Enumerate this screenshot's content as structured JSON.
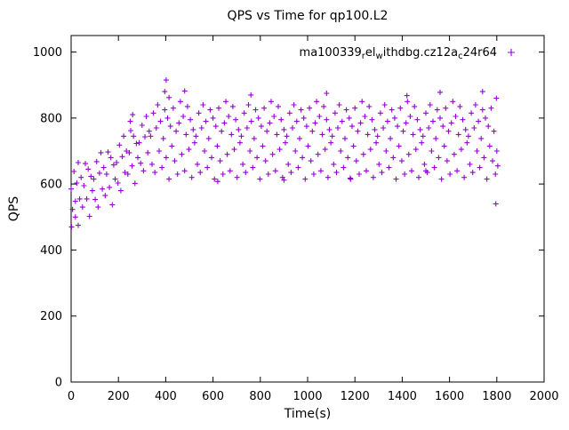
{
  "chart": {
    "marker_color": "#9400d3",
    "legend_segments": [
      {
        "text": "ma100339"
      },
      {
        "text": "r",
        "sub": true
      },
      {
        "text": "el"
      },
      {
        "text": "w",
        "sub": true
      },
      {
        "text": "ithdbg.cz12a",
        "sub": false
      },
      {
        "text": "c",
        "sub": true
      },
      {
        "text": "24r64"
      }
    ]
  },
  "chart_data": {
    "type": "scatter",
    "title": "QPS vs Time for qp100.L2",
    "xlabel": "Time(s)",
    "ylabel": "QPS",
    "xlim": [
      0,
      2000
    ],
    "ylim": [
      0,
      1050
    ],
    "xticks": [
      0,
      200,
      400,
      600,
      800,
      1000,
      1200,
      1400,
      1600,
      1800,
      2000
    ],
    "yticks": [
      0,
      200,
      400,
      600,
      800,
      1000
    ],
    "grid": false,
    "legend_position": "top-right-inside",
    "series": [
      {
        "name": "ma100339_rel_withdbg.cz12a_c24r64",
        "marker": "plus",
        "color": "#9400d3",
        "points": [
          [
            0,
            585
          ],
          [
            6,
            523
          ],
          [
            12,
            638
          ],
          [
            18,
            500
          ],
          [
            24,
            603
          ],
          [
            30,
            665
          ],
          [
            36,
            555
          ],
          [
            42,
            620
          ],
          [
            48,
            530
          ],
          [
            54,
            595
          ],
          [
            60,
            662
          ],
          [
            66,
            555
          ],
          [
            72,
            645
          ],
          [
            78,
            502
          ],
          [
            84,
            623
          ],
          [
            90,
            580
          ],
          [
            96,
            615
          ],
          [
            102,
            553
          ],
          [
            108,
            668
          ],
          [
            114,
            530
          ],
          [
            120,
            633
          ],
          [
            126,
            695
          ],
          [
            132,
            585
          ],
          [
            138,
            650
          ],
          [
            144,
            565
          ],
          [
            150,
            630
          ],
          [
            156,
            697
          ],
          [
            162,
            590
          ],
          [
            168,
            680
          ],
          [
            174,
            537
          ],
          [
            180,
            658
          ],
          [
            186,
            615
          ],
          [
            192,
            665
          ],
          [
            198,
            603
          ],
          [
            204,
            718
          ],
          [
            210,
            580
          ],
          [
            216,
            683
          ],
          [
            222,
            745
          ],
          [
            228,
            635
          ],
          [
            234,
            700
          ],
          [
            240,
            630
          ],
          [
            246,
            695
          ],
          [
            252,
            762
          ],
          [
            258,
            655
          ],
          [
            264,
            745
          ],
          [
            270,
            602
          ],
          [
            276,
            723
          ],
          [
            282,
            680
          ],
          [
            288,
            725
          ],
          [
            294,
            663
          ],
          [
            300,
            778
          ],
          [
            306,
            640
          ],
          [
            312,
            743
          ],
          [
            318,
            805
          ],
          [
            324,
            695
          ],
          [
            330,
            760
          ],
          [
            336,
            745
          ],
          [
            342,
            660
          ],
          [
            348,
            815
          ],
          [
            354,
            635
          ],
          [
            360,
            770
          ],
          [
            366,
            840
          ],
          [
            372,
            700
          ],
          [
            378,
            790
          ],
          [
            384,
            650
          ],
          [
            390,
            738
          ],
          [
            396,
            825
          ],
          [
            402,
            680
          ],
          [
            408,
            800
          ],
          [
            414,
            615
          ],
          [
            420,
            775
          ],
          [
            426,
            715
          ],
          [
            432,
            830
          ],
          [
            438,
            670
          ],
          [
            444,
            760
          ],
          [
            450,
            630
          ],
          [
            456,
            785
          ],
          [
            462,
            850
          ],
          [
            468,
            690
          ],
          [
            474,
            805
          ],
          [
            480,
            640
          ],
          [
            486,
            750
          ],
          [
            492,
            835
          ],
          [
            498,
            705
          ],
          [
            504,
            795
          ],
          [
            510,
            620
          ],
          [
            516,
            765
          ],
          [
            522,
            725
          ],
          [
            528,
            745
          ],
          [
            534,
            660
          ],
          [
            540,
            815
          ],
          [
            546,
            635
          ],
          [
            552,
            770
          ],
          [
            558,
            840
          ],
          [
            564,
            700
          ],
          [
            570,
            790
          ],
          [
            576,
            650
          ],
          [
            582,
            738
          ],
          [
            588,
            825
          ],
          [
            594,
            680
          ],
          [
            600,
            800
          ],
          [
            606,
            615
          ],
          [
            612,
            775
          ],
          [
            618,
            715
          ],
          [
            624,
            830
          ],
          [
            630,
            670
          ],
          [
            636,
            760
          ],
          [
            642,
            630
          ],
          [
            648,
            785
          ],
          [
            654,
            850
          ],
          [
            660,
            690
          ],
          [
            666,
            805
          ],
          [
            672,
            640
          ],
          [
            678,
            750
          ],
          [
            684,
            835
          ],
          [
            690,
            705
          ],
          [
            696,
            795
          ],
          [
            702,
            620
          ],
          [
            708,
            765
          ],
          [
            714,
            725
          ],
          [
            720,
            745
          ],
          [
            726,
            660
          ],
          [
            732,
            815
          ],
          [
            738,
            635
          ],
          [
            744,
            770
          ],
          [
            750,
            840
          ],
          [
            756,
            700
          ],
          [
            762,
            790
          ],
          [
            768,
            650
          ],
          [
            774,
            738
          ],
          [
            780,
            825
          ],
          [
            786,
            680
          ],
          [
            792,
            800
          ],
          [
            798,
            615
          ],
          [
            804,
            775
          ],
          [
            810,
            715
          ],
          [
            816,
            830
          ],
          [
            822,
            670
          ],
          [
            828,
            760
          ],
          [
            834,
            630
          ],
          [
            840,
            785
          ],
          [
            846,
            850
          ],
          [
            852,
            690
          ],
          [
            858,
            805
          ],
          [
            864,
            640
          ],
          [
            870,
            750
          ],
          [
            876,
            835
          ],
          [
            882,
            705
          ],
          [
            888,
            795
          ],
          [
            894,
            620
          ],
          [
            900,
            765
          ],
          [
            906,
            725
          ],
          [
            912,
            745
          ],
          [
            918,
            660
          ],
          [
            924,
            815
          ],
          [
            930,
            635
          ],
          [
            936,
            770
          ],
          [
            942,
            840
          ],
          [
            948,
            700
          ],
          [
            954,
            790
          ],
          [
            960,
            650
          ],
          [
            966,
            738
          ],
          [
            972,
            825
          ],
          [
            978,
            680
          ],
          [
            984,
            800
          ],
          [
            990,
            615
          ],
          [
            996,
            775
          ],
          [
            1002,
            715
          ],
          [
            1008,
            830
          ],
          [
            1014,
            670
          ],
          [
            1020,
            760
          ],
          [
            1026,
            630
          ],
          [
            1032,
            785
          ],
          [
            1038,
            850
          ],
          [
            1044,
            690
          ],
          [
            1050,
            805
          ],
          [
            1056,
            640
          ],
          [
            1062,
            750
          ],
          [
            1068,
            835
          ],
          [
            1074,
            705
          ],
          [
            1080,
            795
          ],
          [
            1086,
            620
          ],
          [
            1092,
            765
          ],
          [
            1098,
            725
          ],
          [
            1104,
            745
          ],
          [
            1110,
            660
          ],
          [
            1116,
            815
          ],
          [
            1122,
            635
          ],
          [
            1128,
            770
          ],
          [
            1134,
            840
          ],
          [
            1140,
            700
          ],
          [
            1146,
            790
          ],
          [
            1152,
            650
          ],
          [
            1158,
            738
          ],
          [
            1164,
            825
          ],
          [
            1170,
            680
          ],
          [
            1176,
            800
          ],
          [
            1182,
            615
          ],
          [
            1188,
            775
          ],
          [
            1194,
            715
          ],
          [
            1200,
            830
          ],
          [
            1206,
            670
          ],
          [
            1212,
            760
          ],
          [
            1218,
            630
          ],
          [
            1224,
            785
          ],
          [
            1230,
            850
          ],
          [
            1236,
            690
          ],
          [
            1242,
            805
          ],
          [
            1248,
            640
          ],
          [
            1254,
            750
          ],
          [
            1260,
            835
          ],
          [
            1266,
            705
          ],
          [
            1272,
            795
          ],
          [
            1278,
            620
          ],
          [
            1284,
            765
          ],
          [
            1290,
            725
          ],
          [
            1296,
            745
          ],
          [
            1302,
            660
          ],
          [
            1308,
            815
          ],
          [
            1314,
            635
          ],
          [
            1320,
            770
          ],
          [
            1326,
            840
          ],
          [
            1332,
            700
          ],
          [
            1338,
            790
          ],
          [
            1344,
            650
          ],
          [
            1350,
            738
          ],
          [
            1356,
            825
          ],
          [
            1362,
            680
          ],
          [
            1368,
            800
          ],
          [
            1374,
            615
          ],
          [
            1380,
            775
          ],
          [
            1386,
            715
          ],
          [
            1392,
            830
          ],
          [
            1398,
            670
          ],
          [
            1404,
            760
          ],
          [
            1410,
            630
          ],
          [
            1416,
            785
          ],
          [
            1422,
            850
          ],
          [
            1428,
            690
          ],
          [
            1434,
            805
          ],
          [
            1440,
            640
          ],
          [
            1446,
            750
          ],
          [
            1452,
            835
          ],
          [
            1458,
            705
          ],
          [
            1464,
            795
          ],
          [
            1470,
            620
          ],
          [
            1476,
            765
          ],
          [
            1482,
            725
          ],
          [
            1488,
            745
          ],
          [
            1494,
            660
          ],
          [
            1500,
            815
          ],
          [
            1506,
            635
          ],
          [
            1512,
            770
          ],
          [
            1518,
            840
          ],
          [
            1524,
            700
          ],
          [
            1530,
            790
          ],
          [
            1536,
            650
          ],
          [
            1542,
            738
          ],
          [
            1548,
            825
          ],
          [
            1554,
            680
          ],
          [
            1560,
            800
          ],
          [
            1566,
            615
          ],
          [
            1572,
            775
          ],
          [
            1578,
            715
          ],
          [
            1584,
            830
          ],
          [
            1590,
            670
          ],
          [
            1596,
            760
          ],
          [
            1602,
            630
          ],
          [
            1608,
            785
          ],
          [
            1614,
            850
          ],
          [
            1620,
            690
          ],
          [
            1626,
            805
          ],
          [
            1632,
            640
          ],
          [
            1638,
            750
          ],
          [
            1644,
            835
          ],
          [
            1650,
            705
          ],
          [
            1656,
            795
          ],
          [
            1662,
            620
          ],
          [
            1668,
            765
          ],
          [
            1674,
            725
          ],
          [
            1680,
            745
          ],
          [
            1686,
            660
          ],
          [
            1692,
            815
          ],
          [
            1698,
            635
          ],
          [
            1704,
            770
          ],
          [
            1710,
            840
          ],
          [
            1716,
            700
          ],
          [
            1722,
            790
          ],
          [
            1728,
            650
          ],
          [
            1734,
            738
          ],
          [
            1740,
            825
          ],
          [
            1746,
            680
          ],
          [
            1752,
            800
          ],
          [
            1758,
            615
          ],
          [
            1764,
            775
          ],
          [
            1770,
            715
          ],
          [
            1776,
            830
          ],
          [
            1782,
            670
          ],
          [
            1788,
            760
          ],
          [
            1794,
            630
          ],
          [
            2,
            470
          ],
          [
            18,
            548
          ],
          [
            30,
            475
          ],
          [
            250,
            790
          ],
          [
            260,
            810
          ],
          [
            396,
            880
          ],
          [
            402,
            915
          ],
          [
            414,
            862
          ],
          [
            480,
            882
          ],
          [
            620,
            608
          ],
          [
            760,
            870
          ],
          [
            900,
            612
          ],
          [
            1080,
            875
          ],
          [
            1180,
            618
          ],
          [
            1420,
            868
          ],
          [
            1500,
            640
          ],
          [
            1560,
            878
          ],
          [
            1740,
            880
          ],
          [
            1796,
            540
          ],
          [
            1798,
            860
          ],
          [
            1800,
            700
          ],
          [
            1804,
            655
          ]
        ]
      }
    ]
  }
}
